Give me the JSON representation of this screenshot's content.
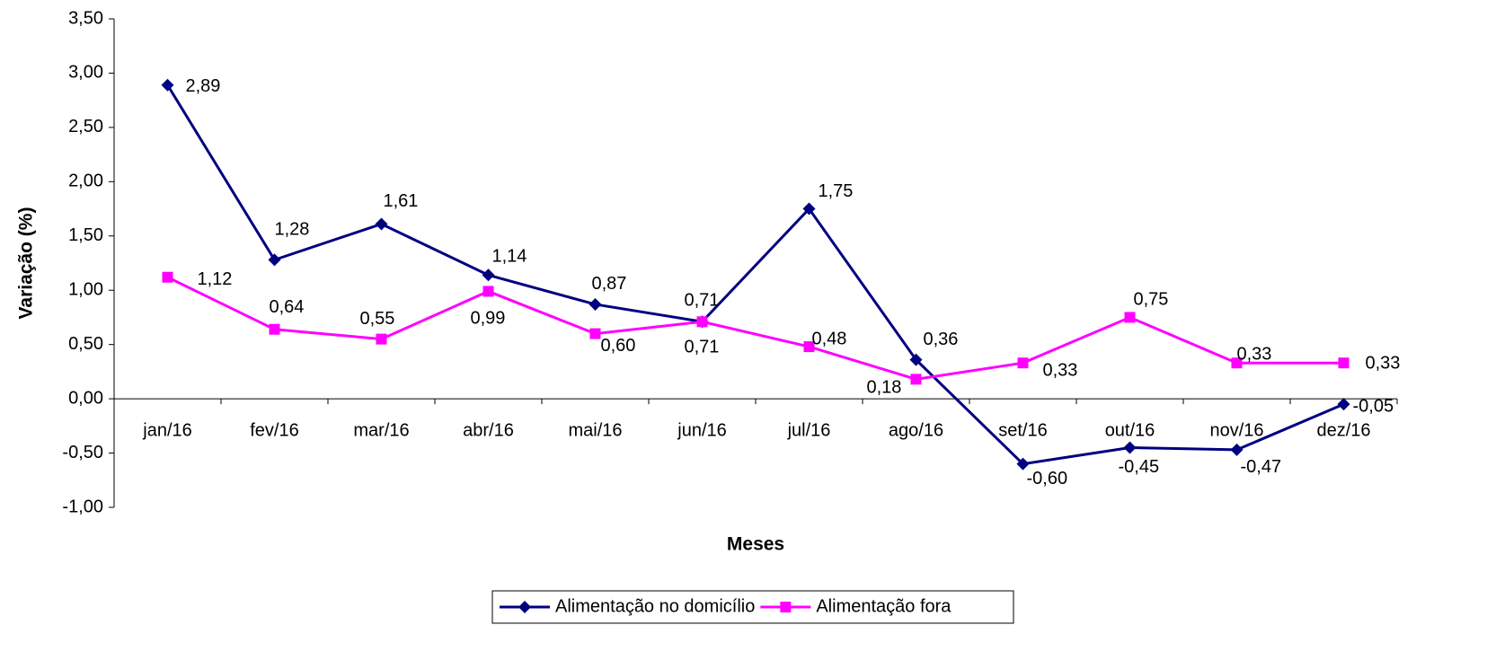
{
  "chart_data": {
    "type": "line",
    "x_label": "Meses",
    "y_label": "Variação (%)",
    "categories": [
      "jan/16",
      "fev/16",
      "mar/16",
      "abr/16",
      "mai/16",
      "jun/16",
      "jul/16",
      "ago/16",
      "set/16",
      "out/16",
      "nov/16",
      "dez/16"
    ],
    "series": [
      {
        "name": "Alimentação no domicílio",
        "color": "#000080",
        "marker": "diamond",
        "values": [
          2.89,
          1.28,
          1.61,
          1.14,
          0.87,
          0.71,
          1.75,
          0.36,
          -0.6,
          -0.45,
          -0.47,
          -0.05
        ],
        "value_labels": [
          "2,89",
          "1,28",
          "1,61",
          "1,14",
          "0,87",
          "0,71",
          "1,75",
          "0,36",
          "-0,60",
          "-0,45",
          "-0,47",
          "-0,05"
        ]
      },
      {
        "name": "Alimentação fora",
        "color": "#FF00FF",
        "marker": "square",
        "values": [
          1.12,
          0.64,
          0.55,
          0.99,
          0.6,
          0.71,
          0.48,
          0.18,
          0.33,
          0.75,
          0.33,
          0.33
        ],
        "value_labels": [
          "1,12",
          "0,64",
          "0,55",
          "0,99",
          "0,60",
          "0,71",
          "0,48",
          "0,18",
          "0,33",
          "0,75",
          "0,33",
          "0,33"
        ]
      }
    ],
    "ylim": [
      -1.0,
      3.5
    ],
    "yticks": [
      {
        "value": -1.0,
        "label": "-1,00"
      },
      {
        "value": -0.5,
        "label": "-0,50"
      },
      {
        "value": 0,
        "label": "0,00"
      },
      {
        "value": 0.5,
        "label": "0,50"
      },
      {
        "value": 1.0,
        "label": "1,00"
      },
      {
        "value": 1.5,
        "label": "1,50"
      },
      {
        "value": 2.0,
        "label": "2,00"
      },
      {
        "value": 2.5,
        "label": "2,50"
      },
      {
        "value": 3.0,
        "label": "3,00"
      },
      {
        "value": 3.5,
        "label": "3,50"
      }
    ],
    "grid": false,
    "legend": "bottom"
  }
}
